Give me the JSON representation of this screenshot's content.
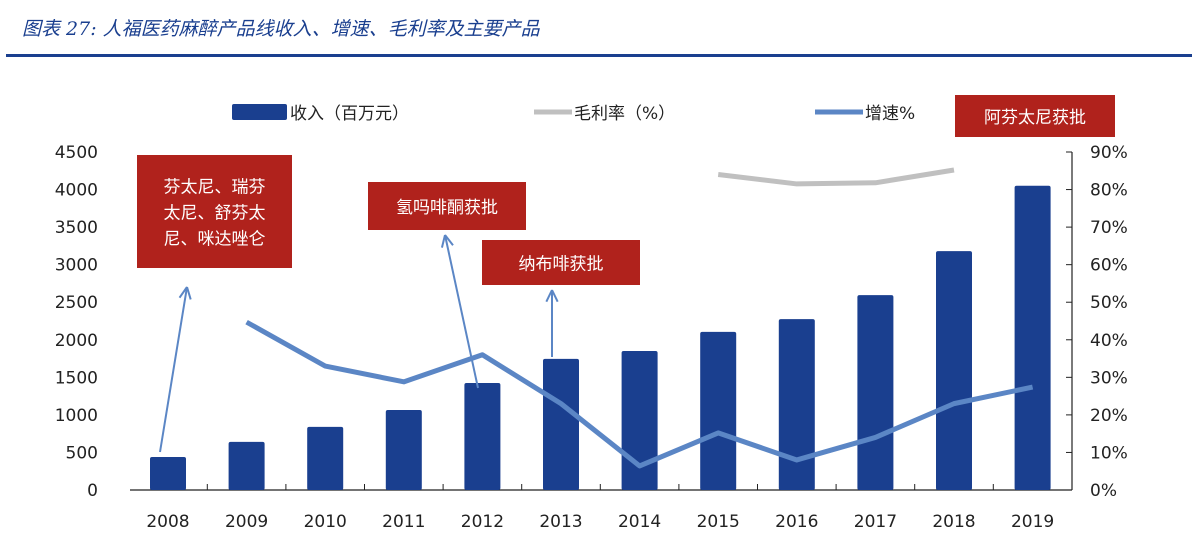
{
  "title": "图表 27: 人福医药麻醉产品线收入、增速、毛利率及主要产品",
  "chart_data": {
    "type": "bar",
    "categories": [
      "2008",
      "2009",
      "2010",
      "2011",
      "2012",
      "2013",
      "2014",
      "2015",
      "2016",
      "2017",
      "2018",
      "2019"
    ],
    "series": [
      {
        "name": "收入（百万元）",
        "type": "bar",
        "axis": "left",
        "color": "#1a3f8f",
        "values": [
          440,
          640,
          840,
          1065,
          1425,
          1745,
          1850,
          2105,
          2275,
          2595,
          3180,
          4050
        ]
      },
      {
        "name": "毛利率（%）",
        "type": "line",
        "axis": "right",
        "color": "#c0c0c0",
        "values": [
          null,
          null,
          null,
          null,
          null,
          null,
          null,
          84,
          81.5,
          81.8,
          85.2,
          null
        ]
      },
      {
        "name": "增速%",
        "type": "line",
        "axis": "right",
        "color": "#5b86c5",
        "values": [
          null,
          44.7,
          33,
          28.8,
          36,
          23,
          6.4,
          15.2,
          8,
          14,
          23,
          27.4
        ]
      }
    ],
    "yticks_left": [
      "0",
      "500",
      "1000",
      "1500",
      "2000",
      "2500",
      "3000",
      "3500",
      "4000",
      "4500"
    ],
    "ylim_left": [
      0,
      4500
    ],
    "yticks_right": [
      "0%",
      "10%",
      "20%",
      "30%",
      "40%",
      "50%",
      "60%",
      "70%",
      "80%",
      "90%"
    ],
    "ylim_right": [
      0,
      90
    ],
    "legend_placement": "top",
    "annotations": [
      {
        "text": "芬太尼、瑞芬太尼、舒芬太尼、咪达唑仑",
        "lines": [
          "芬太尼、瑞芬",
          "太尼、舒芬太",
          "尼、咪达唑仑"
        ],
        "target": "2008",
        "color": "#b0221c"
      },
      {
        "text": "氢吗啡酮获批",
        "lines": [
          "氢吗啡酮获批"
        ],
        "target": "2012",
        "color": "#b0221c"
      },
      {
        "text": "纳布啡获批",
        "lines": [
          "纳布啡获批"
        ],
        "target": "2013",
        "color": "#b0221c"
      },
      {
        "text": "阿芬太尼获批",
        "lines": [
          "阿芬太尼获批"
        ],
        "target": "2019",
        "color": "#b0221c"
      }
    ]
  }
}
